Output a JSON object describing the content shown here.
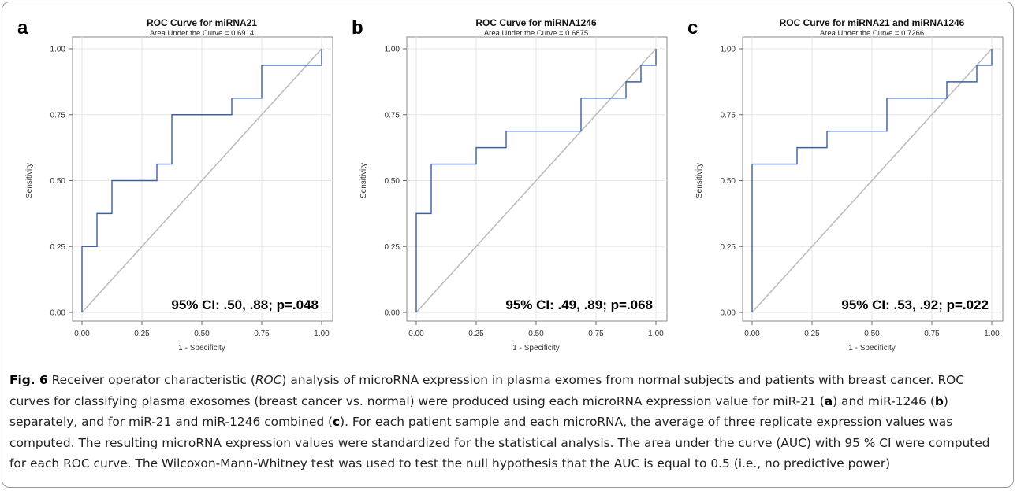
{
  "panels": [
    {
      "letter": "a",
      "title": "ROC Curve for miRNA21",
      "subtitle": "Area Under the Curve = 0.6914",
      "annotation": "95% CI: .50, .88; p=.048"
    },
    {
      "letter": "b",
      "title": "ROC Curve for miRNA1246",
      "subtitle": "Area Under the Curve = 0.6875",
      "annotation": "95% CI: .49, .89; p=.068"
    },
    {
      "letter": "c",
      "title": "ROC Curve for miRNA21 and miRNA1246",
      "subtitle": "Area Under the Curve = 0.7266",
      "annotation": "95% CI: .53, .92; p=.022"
    }
  ],
  "chart_data": [
    {
      "type": "line",
      "title": "ROC Curve for miRNA21",
      "subtitle": "Area Under the Curve = 0.6914",
      "xlabel": "1 - Specificity",
      "ylabel": "Sensitivity",
      "xlim": [
        0,
        1
      ],
      "ylim": [
        0,
        1
      ],
      "xticks": [
        "0.00",
        "0.25",
        "0.50",
        "0.75",
        "1.00"
      ],
      "yticks": [
        "0.00",
        "0.25",
        "0.50",
        "0.75",
        "1.00"
      ],
      "grid": true,
      "curve_color": "#3a5ea8",
      "diagonal_color": "#bdbdbd",
      "x": [
        0,
        0,
        0.0625,
        0.0625,
        0.125,
        0.125,
        0.3125,
        0.3125,
        0.375,
        0.375,
        0.625,
        0.625,
        0.75,
        0.75,
        1,
        1
      ],
      "y": [
        0,
        0.25,
        0.25,
        0.375,
        0.375,
        0.5,
        0.5,
        0.5625,
        0.5625,
        0.75,
        0.75,
        0.8125,
        0.8125,
        0.9375,
        0.9375,
        1
      ],
      "annotation": "95% CI: .50, .88; p=.048"
    },
    {
      "type": "line",
      "title": "ROC Curve for miRNA1246",
      "subtitle": "Area Under the Curve = 0.6875",
      "xlabel": "1 - Specificity",
      "ylabel": "Sensitivity",
      "xlim": [
        0,
        1
      ],
      "ylim": [
        0,
        1
      ],
      "xticks": [
        "0.00",
        "0.25",
        "0.50",
        "0.75",
        "1.00"
      ],
      "yticks": [
        "0.00",
        "0.25",
        "0.50",
        "0.75",
        "1.00"
      ],
      "grid": true,
      "curve_color": "#3a5ea8",
      "diagonal_color": "#bdbdbd",
      "x": [
        0,
        0,
        0.0625,
        0.0625,
        0.25,
        0.25,
        0.375,
        0.375,
        0.6875,
        0.6875,
        0.875,
        0.875,
        0.9375,
        0.9375,
        1,
        1
      ],
      "y": [
        0,
        0.375,
        0.375,
        0.5625,
        0.5625,
        0.625,
        0.625,
        0.6875,
        0.6875,
        0.8125,
        0.8125,
        0.875,
        0.875,
        0.9375,
        0.9375,
        1
      ],
      "annotation": "95% CI: .49, .89; p=.068"
    },
    {
      "type": "line",
      "title": "ROC Curve for miRNA21 and miRNA1246",
      "subtitle": "Area Under the Curve = 0.7266",
      "xlabel": "1 - Specificity",
      "ylabel": "Sensitivity",
      "xlim": [
        0,
        1
      ],
      "ylim": [
        0,
        1
      ],
      "xticks": [
        "0.00",
        "0.25",
        "0.50",
        "0.75",
        "1.00"
      ],
      "yticks": [
        "0.00",
        "0.25",
        "0.50",
        "0.75",
        "1.00"
      ],
      "grid": true,
      "curve_color": "#3a5ea8",
      "diagonal_color": "#bdbdbd",
      "x": [
        0,
        0,
        0.1875,
        0.1875,
        0.3125,
        0.3125,
        0.5625,
        0.5625,
        0.8125,
        0.8125,
        0.9375,
        0.9375,
        1,
        1
      ],
      "y": [
        0,
        0.5625,
        0.5625,
        0.625,
        0.625,
        0.6875,
        0.6875,
        0.8125,
        0.8125,
        0.875,
        0.875,
        0.9375,
        0.9375,
        1
      ],
      "annotation": "95% CI: .53, .92; p=.022"
    }
  ],
  "caption": {
    "label": "Fig. 6",
    "parts": [
      {
        "t": " Receiver operator characteristic (",
        "s": "n"
      },
      {
        "t": "ROC",
        "s": "i"
      },
      {
        "t": ") analysis of microRNA expression in plasma exomes from normal subjects and patients with breast cancer. ROC curves for classifying plasma exosomes (breast cancer vs. normal) were produced using each microRNA expression value for miR-21 (",
        "s": "n"
      },
      {
        "t": "a",
        "s": "b"
      },
      {
        "t": ") and miR-1246 (",
        "s": "n"
      },
      {
        "t": "b",
        "s": "b"
      },
      {
        "t": ") separately, and for miR-21 and miR-1246 combined (",
        "s": "n"
      },
      {
        "t": "c",
        "s": "b"
      },
      {
        "t": "). For each patient sample and each microRNA, the average of three replicate expression values was computed. The resulting microRNA expression values were standardized for the statistical analysis. The area under the curve (AUC) with 95 % CI were computed for each ROC curve. The Wilcoxon-Mann-Whitney test was used to test the null hypothesis that the AUC is equal to 0.5 (i.e., no predictive power)",
        "s": "n"
      }
    ]
  }
}
